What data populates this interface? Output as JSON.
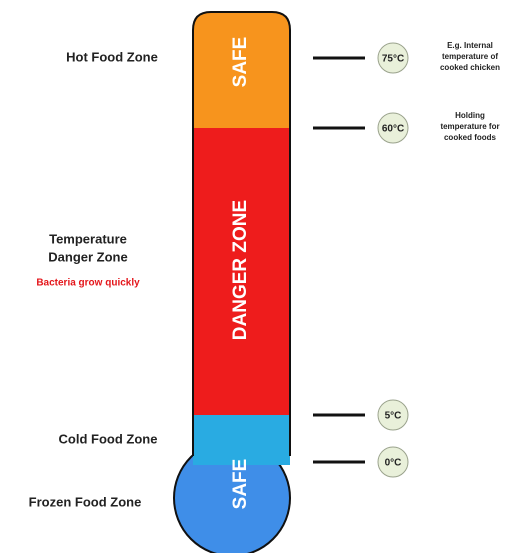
{
  "zones": [
    {
      "label": "Hot Food Zone",
      "tube_label": "SAFE"
    },
    {
      "label": [
        "Temperature",
        "Danger Zone"
      ],
      "sublabel": "Bacteria grow quickly",
      "tube_label": "DANGER ZONE"
    },
    {
      "label": "Cold Food Zone"
    },
    {
      "label": "Frozen Food Zone",
      "tube_label": "SAFE"
    }
  ],
  "markers": [
    {
      "temperature": "75°C",
      "note": [
        "E.g. Internal",
        "temperature of",
        "cooked chicken"
      ]
    },
    {
      "temperature": "60°C",
      "note": [
        "Holding",
        "temperature for",
        "cooked foods"
      ]
    },
    {
      "temperature": "5°C"
    },
    {
      "temperature": "0°C"
    }
  ]
}
